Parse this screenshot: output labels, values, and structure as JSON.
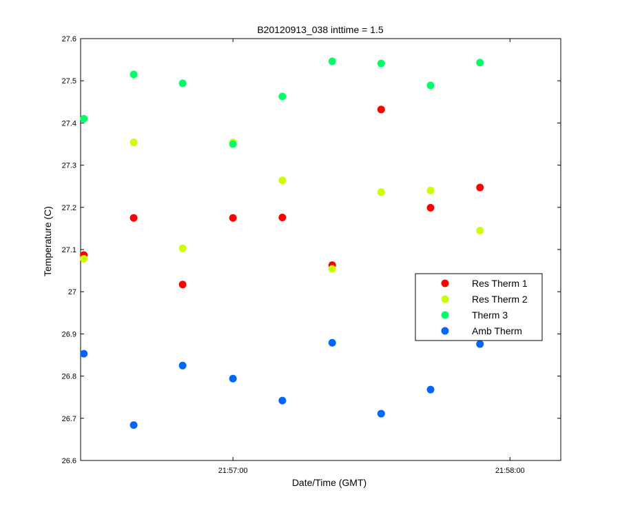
{
  "chart_data": {
    "type": "scatter",
    "title": "B20120913_038 inttime = 1.5",
    "xlabel": "Date/Time (GMT)",
    "ylabel": "Temperature (C)",
    "xlim_seconds": [
      -33,
      71
    ],
    "ylim": [
      26.6,
      27.6
    ],
    "y_ticks": [
      "26.6",
      "26.7",
      "26.8",
      "26.9",
      "27",
      "27.1",
      "27.2",
      "27.3",
      "27.4",
      "27.5",
      "27.6"
    ],
    "x_ticks": [
      {
        "value_seconds": 0,
        "label": "21:57:00"
      },
      {
        "value_seconds": 60,
        "label": "21:58:00"
      }
    ],
    "x_times_seconds": [
      -32.3,
      -21.5,
      -10.9,
      0,
      10.7,
      21.5,
      32.1,
      42.8,
      53.5
    ],
    "grid": false,
    "legend_position": "right",
    "series": [
      {
        "name": "Res Therm 1",
        "color": "#ff0000",
        "y": [
          27.087,
          27.175,
          27.017,
          27.175,
          27.176,
          27.063,
          27.432,
          27.199,
          27.247
        ]
      },
      {
        "name": "Res Therm 2",
        "color": "#ccff00",
        "y": [
          27.078,
          27.354,
          27.103,
          27.354,
          27.264,
          27.054,
          27.236,
          27.24,
          27.145
        ]
      },
      {
        "name": "Therm 3",
        "color": "#00ff66",
        "y": [
          27.41,
          27.515,
          27.494,
          27.35,
          27.463,
          27.546,
          27.541,
          27.489,
          27.543
        ]
      },
      {
        "name": "Amb Therm",
        "color": "#0066ff",
        "y": [
          26.853,
          26.684,
          26.825,
          26.794,
          26.742,
          26.879,
          26.711,
          26.768,
          26.876
        ]
      }
    ]
  }
}
